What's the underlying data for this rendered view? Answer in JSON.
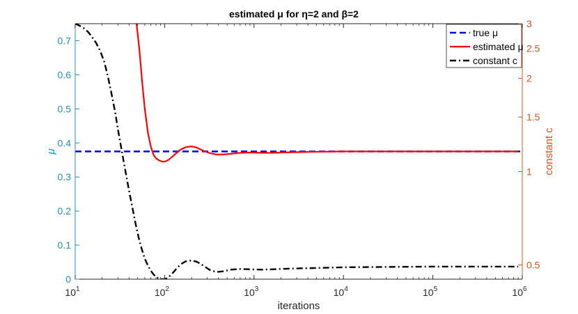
{
  "chart_data": {
    "type": "line",
    "title": "estimated μ for η=2 and β=2",
    "xlabel": "iterations",
    "ylabel_left": "μ",
    "ylabel_right": "constant c",
    "x_scale": "log",
    "xlim": [
      10,
      1000000
    ],
    "ylim_left": [
      0,
      0.75
    ],
    "ylim_right": [
      0.45,
      3.0
    ],
    "y_right_scale": "log",
    "x_ticks": [
      {
        "value": 10,
        "base": "10",
        "exp": "1"
      },
      {
        "value": 100,
        "base": "10",
        "exp": "2"
      },
      {
        "value": 1000,
        "base": "10",
        "exp": "3"
      },
      {
        "value": 10000,
        "base": "10",
        "exp": "4"
      },
      {
        "value": 100000,
        "base": "10",
        "exp": "5"
      },
      {
        "value": 1000000,
        "base": "10",
        "exp": "6"
      }
    ],
    "y_left_ticks": [
      "0",
      "0.1",
      "0.2",
      "0.3",
      "0.4",
      "0.5",
      "0.6",
      "0.7"
    ],
    "y_left_tick_values": [
      0,
      0.1,
      0.2,
      0.3,
      0.4,
      0.5,
      0.6,
      0.7
    ],
    "y_right_ticks": [
      "0.5",
      "1",
      "1.5",
      "2",
      "2.5",
      "3"
    ],
    "y_right_tick_values": [
      0.5,
      1,
      1.5,
      2,
      2.5,
      3
    ],
    "legend_position": "top-right",
    "colors": {
      "left_axis": "#1f8fc8",
      "right_axis": "#d9531e",
      "true_mu": "#0000ff",
      "estimated_mu": "#ff0000",
      "constant_c": "#000000"
    },
    "series": [
      {
        "name": "true μ",
        "axis": "left",
        "style": "dashed",
        "x": [
          10,
          1000000
        ],
        "y": [
          0.375,
          0.375
        ]
      },
      {
        "name": "estimated μ",
        "axis": "left",
        "style": "solid",
        "x": [
          48,
          52,
          56,
          60,
          65,
          70,
          75,
          80,
          85,
          90,
          95,
          100,
          110,
          120,
          135,
          150,
          170,
          200,
          230,
          270,
          320,
          380,
          450,
          550,
          700,
          900,
          1200,
          1600,
          2000,
          3000,
          5000,
          10000,
          30000,
          100000,
          300000,
          900000
        ],
        "y": [
          0.76,
          0.68,
          0.58,
          0.5,
          0.43,
          0.39,
          0.365,
          0.355,
          0.35,
          0.347,
          0.345,
          0.345,
          0.35,
          0.358,
          0.37,
          0.38,
          0.387,
          0.39,
          0.386,
          0.377,
          0.37,
          0.366,
          0.366,
          0.368,
          0.371,
          0.372,
          0.371,
          0.371,
          0.372,
          0.373,
          0.374,
          0.375,
          0.375,
          0.375,
          0.375,
          0.375
        ]
      },
      {
        "name": "constant c",
        "axis": "left",
        "style": "dashdot",
        "x": [
          10,
          11,
          12,
          13,
          14,
          15,
          17,
          19,
          21,
          23,
          25,
          28,
          30,
          33,
          36,
          40,
          44,
          48,
          52,
          56,
          60,
          65,
          70,
          75,
          80,
          85,
          90,
          95,
          100,
          110,
          120,
          135,
          150,
          170,
          200,
          230,
          270,
          320,
          380,
          450,
          550,
          700,
          900,
          1200,
          1600,
          2500,
          5000,
          10000,
          30000,
          100000,
          300000,
          900000
        ],
        "y": [
          0.75,
          0.745,
          0.74,
          0.733,
          0.725,
          0.715,
          0.695,
          0.67,
          0.64,
          0.6,
          0.555,
          0.49,
          0.44,
          0.38,
          0.325,
          0.26,
          0.205,
          0.155,
          0.115,
          0.085,
          0.06,
          0.04,
          0.025,
          0.014,
          0.007,
          0.003,
          0.001,
          0.0,
          0.0,
          0.005,
          0.015,
          0.03,
          0.043,
          0.052,
          0.055,
          0.051,
          0.04,
          0.027,
          0.021,
          0.023,
          0.028,
          0.03,
          0.029,
          0.028,
          0.029,
          0.031,
          0.033,
          0.035,
          0.036,
          0.037,
          0.037,
          0.037
        ]
      }
    ]
  }
}
